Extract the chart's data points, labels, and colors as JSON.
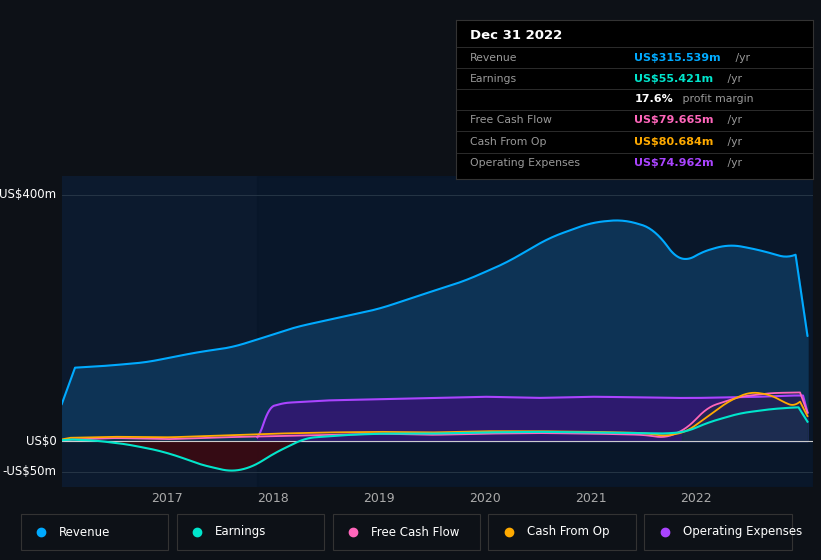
{
  "bg_color": "#0d1117",
  "chart_bg": "#0c1a2e",
  "title": "Dec 31 2022",
  "ylim": [
    -75,
    430
  ],
  "xlim": [
    2016.0,
    2023.1
  ],
  "revenue_color": "#00aaff",
  "revenue_fill": "#0d3355",
  "earnings_color": "#00e5cc",
  "fcf_color": "#ff66bb",
  "cashop_color": "#ffaa00",
  "opex_color": "#aa44ff",
  "opex_fill": "#2d1a6e",
  "earnings_neg_fill": "#3a0a12",
  "overlay_color": "#081422",
  "legend": [
    {
      "label": "Revenue",
      "color": "#00aaff"
    },
    {
      "label": "Earnings",
      "color": "#00e5cc"
    },
    {
      "label": "Free Cash Flow",
      "color": "#ff66bb"
    },
    {
      "label": "Cash From Op",
      "color": "#ffaa00"
    },
    {
      "label": "Operating Expenses",
      "color": "#aa44ff"
    }
  ],
  "table_rows": [
    {
      "label": "Revenue",
      "value": "US$315.539m",
      "color": "#00aaff"
    },
    {
      "label": "Earnings",
      "value": "US$55.421m",
      "color": "#00e5cc"
    },
    {
      "label": "profit_margin",
      "value": "17.6%",
      "color": "#ffffff"
    },
    {
      "label": "Free Cash Flow",
      "value": "US$79.665m",
      "color": "#ff66bb"
    },
    {
      "label": "Cash From Op",
      "value": "US$80.684m",
      "color": "#ffaa00"
    },
    {
      "label": "Operating Expenses",
      "value": "US$74.962m",
      "color": "#aa44ff"
    }
  ]
}
